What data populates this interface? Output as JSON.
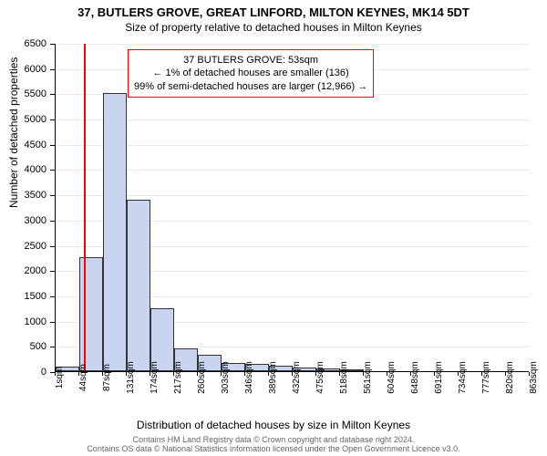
{
  "title": "37, BUTLERS GROVE, GREAT LINFORD, MILTON KEYNES, MK14 5DT",
  "subtitle": "Size of property relative to detached houses in Milton Keynes",
  "chart": {
    "type": "histogram",
    "background_color": "#ffffff",
    "grid_color": "#e5e5e5",
    "bar_fill": "#c9d4f1",
    "bar_stroke": "#333333",
    "marker_color": "#ff0000",
    "marker_position_sqm": 53,
    "ylim": [
      0,
      6500
    ],
    "ytick_step": 500,
    "yticks": [
      0,
      500,
      1000,
      1500,
      2000,
      2500,
      3000,
      3500,
      4000,
      4500,
      5000,
      5500,
      6000,
      6500
    ],
    "ylabel": "Number of detached properties",
    "xlabel": "Distribution of detached houses by size in Milton Keynes",
    "xtick_labels": [
      "1sqm",
      "44sqm",
      "87sqm",
      "131sqm",
      "174sqm",
      "217sqm",
      "260sqm",
      "303sqm",
      "346sqm",
      "389sqm",
      "432sqm",
      "475sqm",
      "518sqm",
      "561sqm",
      "604sqm",
      "648sqm",
      "691sqm",
      "734sqm",
      "777sqm",
      "820sqm",
      "863sqm"
    ],
    "bar_values": [
      90,
      2250,
      5500,
      3400,
      1250,
      450,
      320,
      160,
      140,
      100,
      80,
      60,
      30,
      0,
      0,
      0,
      0,
      0,
      0,
      0
    ],
    "bin_count": 20,
    "title_fontsize": 13,
    "subtitle_fontsize": 12,
    "label_fontsize": 12,
    "tick_fontsize": 11
  },
  "annotation": {
    "line1": "37 BUTLERS GROVE: 53sqm",
    "line2": "← 1% of detached houses are smaller (136)",
    "line3": "99% of semi-detached houses are larger (12,966) →",
    "border_color": "#ff0000",
    "background_color": "#ffffff",
    "font_size": 11
  },
  "footer": {
    "line1": "Contains HM Land Registry data © Crown copyright and database right 2024.",
    "line2": "Contains OS data © National Statistics information licensed under the Open Government Licence v3.0.",
    "color": "#666666",
    "font_size": 9
  }
}
